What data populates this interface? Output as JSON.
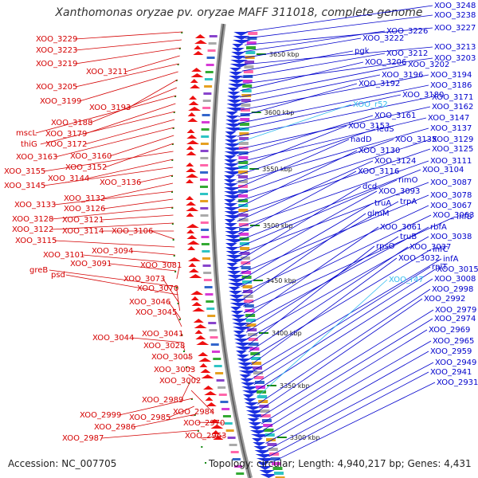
{
  "title": "Xanthomonas oryzae pv. oryzae MAFF 311018, complete genome",
  "accession": "Accession: NC_007705",
  "summary": "Topology: circular; Length: 4,940,217 bp; Genes: 4,431",
  "colors": {
    "forward_label": "#d40000",
    "reverse_label": "#0000cc",
    "rna_label": "#33bbee",
    "backbone": "#9a9a9a",
    "forward_gene": "#ee1111",
    "reverse_gene": "#1a2fe0",
    "tick": "#118811"
  },
  "ruler_ticks": [
    {
      "label": "3650 kbp"
    },
    {
      "label": "3600 kbp"
    },
    {
      "label": "3550 kbp"
    },
    {
      "label": "3500 kbp"
    },
    {
      "label": "3450 kbp"
    },
    {
      "label": "3400 kbp"
    },
    {
      "label": "3350 kbp"
    },
    {
      "label": "3300 kbp"
    }
  ],
  "forward_genes": [
    "XOO_3229",
    "XOO_3223",
    "XOO_3219",
    "XOO_3211",
    "XOO_3205",
    "XOO_3199",
    "XOO_3193",
    "XOO_3188",
    "mscL",
    "XOO_3179",
    "thiG",
    "XOO_3172",
    "XOO_3163",
    "XOO_3160",
    "XOO_3152",
    "XOO_3155",
    "XOO_3144",
    "XOO_3145",
    "XOO_3136",
    "XOO_3132",
    "XOO_3133",
    "XOO_3126",
    "XOO_3128",
    "XOO_3121",
    "XOO_3122",
    "XOO_3114",
    "XOO_3106",
    "XOO_3115",
    "XOO_3094",
    "XOO_3101",
    "XOO_3091",
    "XOO_3081",
    "greB",
    "psd",
    "XOO_3073",
    "XOO_3070",
    "XOO_3046",
    "XOO_3045",
    "XOO_3041",
    "XOO_3044",
    "XOO_3028",
    "XOO_3005",
    "XOO_3003",
    "XOO_3002",
    "XOO_2989",
    "XOO_2984",
    "XOO_2999",
    "XOO_2985",
    "XOO_2986",
    "XOO_2970",
    "XOO_2987",
    "XOO_2963"
  ],
  "reverse_genes": [
    "XOO_3248",
    "XOO_3238",
    "XOO_3227",
    "XOO_3226",
    "XOO_3222",
    "XOO_3213",
    "pgk",
    "XOO_3212",
    "XOO_3203",
    "XOO_3206",
    "XOO_3202",
    "XOO_3196",
    "XOO_3194",
    "XOO_3192",
    "XOO_3186",
    "XOO_3180",
    "XOO_3171",
    "XOO_r52",
    "XOO_3162",
    "XOO_3161",
    "XOO_3147",
    "XOO_3153",
    "leuS",
    "XOO_3137",
    "nadD",
    "XOO_3135",
    "XOO_3129",
    "XOO_3130",
    "XOO_3125",
    "XOO_3124",
    "XOO_3111",
    "XOO_3116",
    "XOO_3104",
    "rimO",
    "XOO_3087",
    "dcd",
    "XOO_3093",
    "XOO_3078",
    "truA",
    "trpA",
    "XOO_3067",
    "glmM",
    "XOO_3063",
    "infB",
    "XOO_3061",
    "rbfA",
    "truB",
    "XOO_3038",
    "rpsO",
    "XOO_3037",
    "infC",
    "XOO_3032",
    "infA",
    "rplT",
    "XOO_3015",
    "XOO_3008",
    "XOO_r47",
    "XOO_2998",
    "XOO_2992",
    "XOO_2979",
    "XOO_2974",
    "XOO_2969",
    "XOO_2965",
    "XOO_2959",
    "XOO_2949",
    "XOO_2941",
    "XOO_2931"
  ]
}
